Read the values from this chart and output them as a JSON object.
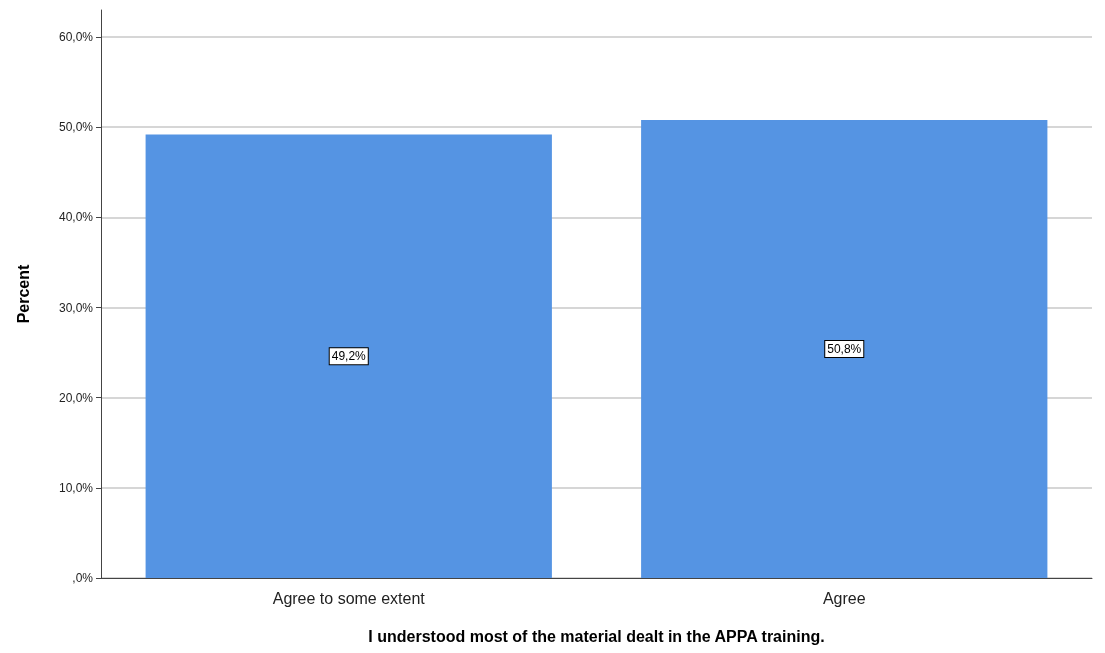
{
  "chart_data": {
    "type": "bar",
    "xlabel": "I understood most of the material dealt in the APPA training.",
    "ylabel": "Percent",
    "categories": [
      "Agree to some extent",
      "Agree"
    ],
    "values": [
      49.2,
      50.8
    ],
    "color": "#5594e3",
    "value_labels": [
      "49,2%",
      "50,8%"
    ],
    "ylim": [
      0,
      63
    ],
    "yticks": [
      {
        "value": 0,
        "label": ",0%"
      },
      {
        "value": 10,
        "label": "10,0%"
      },
      {
        "value": 20,
        "label": "20,0%"
      },
      {
        "value": 30,
        "label": "30,0%"
      },
      {
        "value": 40,
        "label": "40,0%"
      },
      {
        "value": 50,
        "label": "50,0%"
      },
      {
        "value": 60,
        "label": "60,0%"
      }
    ],
    "grid": "y"
  }
}
